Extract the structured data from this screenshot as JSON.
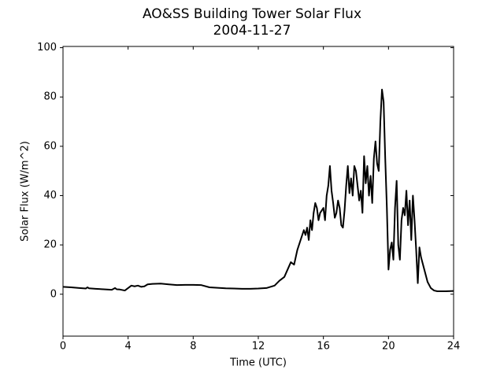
{
  "chart_data": {
    "type": "line",
    "title": "AO&SS Building Tower Solar Flux",
    "subtitle": "2004-11-27",
    "x_label": "Time (UTC)",
    "y_label": "Solar Flux (W/m^2)",
    "xlim": [
      0,
      24
    ],
    "xticks": [
      0,
      4,
      8,
      12,
      16,
      20,
      24
    ],
    "ylim": [
      -17,
      100.5
    ],
    "yticks": [
      0,
      20,
      40,
      60,
      80,
      100
    ],
    "series": [
      {
        "color": "#000000",
        "x": [
          0,
          0.5,
          1,
          1.4,
          1.5,
          1.6,
          2,
          2.5,
          3,
          3.2,
          3.3,
          3.5,
          3.8,
          4,
          4.2,
          4.4,
          4.6,
          4.8,
          5,
          5.2,
          5.5,
          6,
          6.5,
          7,
          7.5,
          8,
          8.5,
          9,
          9.5,
          10,
          10.5,
          11,
          11.5,
          12,
          12.5,
          13,
          13.3,
          13.6,
          13.8,
          14,
          14.2,
          14.4,
          14.6,
          14.8,
          14.9,
          15,
          15.1,
          15.2,
          15.3,
          15.4,
          15.5,
          15.6,
          15.7,
          15.8,
          16,
          16.1,
          16.2,
          16.3,
          16.4,
          16.5,
          16.6,
          16.7,
          16.8,
          16.9,
          17,
          17.1,
          17.2,
          17.3,
          17.4,
          17.5,
          17.6,
          17.7,
          17.8,
          17.9,
          18,
          18.1,
          18.2,
          18.3,
          18.4,
          18.5,
          18.6,
          18.7,
          18.8,
          18.9,
          19,
          19.1,
          19.2,
          19.3,
          19.4,
          19.5,
          19.6,
          19.7,
          19.8,
          19.9,
          20,
          20.1,
          20.2,
          20.3,
          20.4,
          20.5,
          20.6,
          20.7,
          20.8,
          20.9,
          21,
          21.1,
          21.2,
          21.3,
          21.4,
          21.5,
          21.6,
          21.7,
          21.8,
          21.9,
          22,
          22.2,
          22.4,
          22.6,
          22.8,
          23,
          23.5,
          24
        ],
        "values": [
          3,
          2.8,
          2.5,
          2.3,
          2.8,
          2.4,
          2.2,
          2,
          1.8,
          2.5,
          2,
          1.9,
          1.5,
          2.5,
          3.5,
          3.2,
          3.5,
          3,
          3.2,
          4,
          4.2,
          4.3,
          4,
          3.7,
          3.8,
          3.8,
          3.7,
          2.8,
          2.6,
          2.4,
          2.3,
          2.2,
          2.2,
          2.3,
          2.5,
          3.5,
          5.5,
          7,
          10,
          13,
          12,
          18,
          22,
          26,
          24,
          27,
          22,
          30,
          26,
          33,
          37,
          35,
          30,
          33,
          35,
          30,
          40,
          44,
          52,
          42,
          37,
          31,
          33,
          38,
          35,
          28,
          27,
          34,
          44,
          52,
          41,
          47,
          40,
          52,
          50,
          44,
          38,
          42,
          33,
          56,
          45,
          52,
          40,
          48,
          37,
          55,
          62,
          53,
          50,
          70,
          83,
          78,
          55,
          35,
          10,
          18,
          21,
          14,
          35,
          46,
          20,
          14,
          30,
          35,
          32,
          42,
          28,
          38,
          22,
          40,
          30,
          18,
          4.5,
          19,
          15,
          10,
          5,
          2.5,
          1.5,
          1.2,
          1.2,
          1.3
        ]
      }
    ]
  }
}
